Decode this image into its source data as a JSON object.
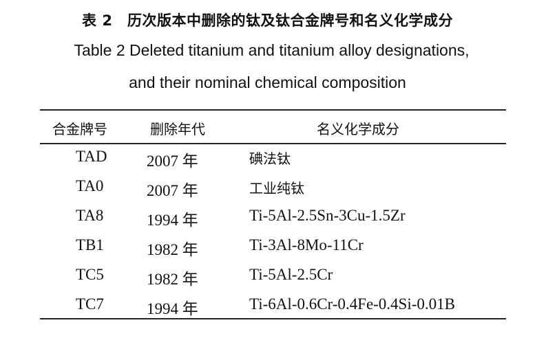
{
  "caption": {
    "cn": "表 2　历次版本中删除的钛及钛合金牌号和名义化学成分",
    "en_line1": "Table 2   Deleted titanium and titanium alloy designations,",
    "en_line2": "and their nominal chemical composition"
  },
  "table": {
    "headers": [
      "合金牌号",
      "删除年代",
      "名义化学成分"
    ],
    "rows": [
      {
        "designation": "TAD",
        "year": "2007 年",
        "composition": "碘法钛"
      },
      {
        "designation": "TA0",
        "year": "2007 年",
        "composition": "工业纯钛"
      },
      {
        "designation": "TA8",
        "year": "1994 年",
        "composition": "Ti-5Al-2.5Sn-3Cu-1.5Zr"
      },
      {
        "designation": "TB1",
        "year": "1982 年",
        "composition": "Ti-3Al-8Mo-11Cr"
      },
      {
        "designation": "TC5",
        "year": "1982 年",
        "composition": "Ti-5Al-2.5Cr"
      },
      {
        "designation": "TC7",
        "year": "1994 年",
        "composition": "Ti-6Al-0.6Cr-0.4Fe-0.4Si-0.01B"
      }
    ]
  }
}
